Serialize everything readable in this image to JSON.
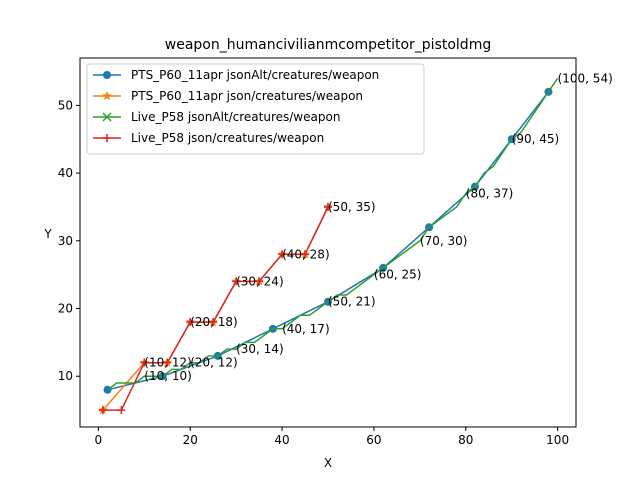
{
  "chart_data": {
    "type": "line",
    "title": "weapon_humancivilianmcompetitor_pistoldmg",
    "xlabel": "X",
    "ylabel": "Y",
    "xlim": [
      -4,
      104
    ],
    "ylim": [
      2.5,
      57
    ],
    "xticks": [
      0,
      20,
      40,
      60,
      80,
      100
    ],
    "yticks": [
      10,
      20,
      30,
      40,
      50
    ],
    "grid": false,
    "legend_position": "upper-left",
    "series": [
      {
        "name": "PTS_P60_11apr jsonAlt/creatures/weapon",
        "color": "#1f77b4",
        "marker": "circle",
        "x": [
          2,
          14,
          26,
          38,
          50,
          62,
          72,
          82,
          90,
          98
        ],
        "y": [
          8,
          10,
          13,
          17,
          21,
          26,
          32,
          38,
          45,
          52
        ]
      },
      {
        "name": "PTS_P60_11apr json/creatures/weapon",
        "color": "#ff7f0e",
        "marker": "star",
        "x": [
          1,
          10,
          15,
          20,
          25,
          30,
          35,
          40,
          45,
          50
        ],
        "y": [
          5,
          12,
          12,
          18,
          18,
          24,
          24,
          28,
          28,
          35
        ]
      },
      {
        "name": "Live_P58 jsonAlt/creatures/weapon",
        "color": "#2ca02c",
        "marker": "x",
        "x": [
          2,
          4,
          6,
          8,
          10,
          12,
          14,
          16,
          18,
          20,
          22,
          24,
          26,
          28,
          30,
          32,
          34,
          36,
          38,
          40,
          42,
          44,
          46,
          48,
          50,
          52,
          54,
          56,
          58,
          60,
          62,
          64,
          66,
          68,
          70,
          72,
          74,
          76,
          78,
          80,
          82,
          84,
          86,
          88,
          90,
          92,
          94,
          96,
          98,
          100
        ],
        "y": [
          8,
          9,
          9,
          9,
          10,
          10,
          10,
          11,
          11,
          12,
          12,
          13,
          13,
          14,
          14,
          15,
          15,
          16,
          17,
          17,
          18,
          19,
          19,
          20,
          21,
          22,
          22,
          23,
          24,
          25,
          26,
          27,
          28,
          29,
          30,
          32,
          33,
          34,
          35,
          37,
          38,
          40,
          41,
          43,
          45,
          46,
          48,
          50,
          52,
          54
        ]
      },
      {
        "name": "Live_P58 json/creatures/weapon",
        "color": "#d62728",
        "marker": "plus",
        "x": [
          1,
          5,
          10,
          15,
          20,
          25,
          30,
          35,
          40,
          45,
          50
        ],
        "y": [
          5,
          5,
          12,
          12,
          18,
          18,
          24,
          24,
          28,
          28,
          35
        ]
      }
    ],
    "annotations": [
      {
        "text": "(10, 10)",
        "x": 10,
        "y": 10
      },
      {
        "text": "(10, 12)",
        "x": 10,
        "y": 12
      },
      {
        "text": "(20, 12)",
        "x": 20,
        "y": 12
      },
      {
        "text": "(20, 18)",
        "x": 20,
        "y": 18
      },
      {
        "text": "(30, 14)",
        "x": 30,
        "y": 14
      },
      {
        "text": "(30, 24)",
        "x": 30,
        "y": 24
      },
      {
        "text": "(40, 17)",
        "x": 40,
        "y": 17
      },
      {
        "text": "(40, 28)",
        "x": 40,
        "y": 28
      },
      {
        "text": "(50, 21)",
        "x": 50,
        "y": 21
      },
      {
        "text": "(50, 35)",
        "x": 50,
        "y": 35
      },
      {
        "text": "(60, 25)",
        "x": 60,
        "y": 25
      },
      {
        "text": "(70, 30)",
        "x": 70,
        "y": 30
      },
      {
        "text": "(80, 37)",
        "x": 80,
        "y": 37
      },
      {
        "text": "(90, 45)",
        "x": 90,
        "y": 45
      },
      {
        "text": "(100, 54)",
        "x": 100,
        "y": 54
      }
    ]
  }
}
